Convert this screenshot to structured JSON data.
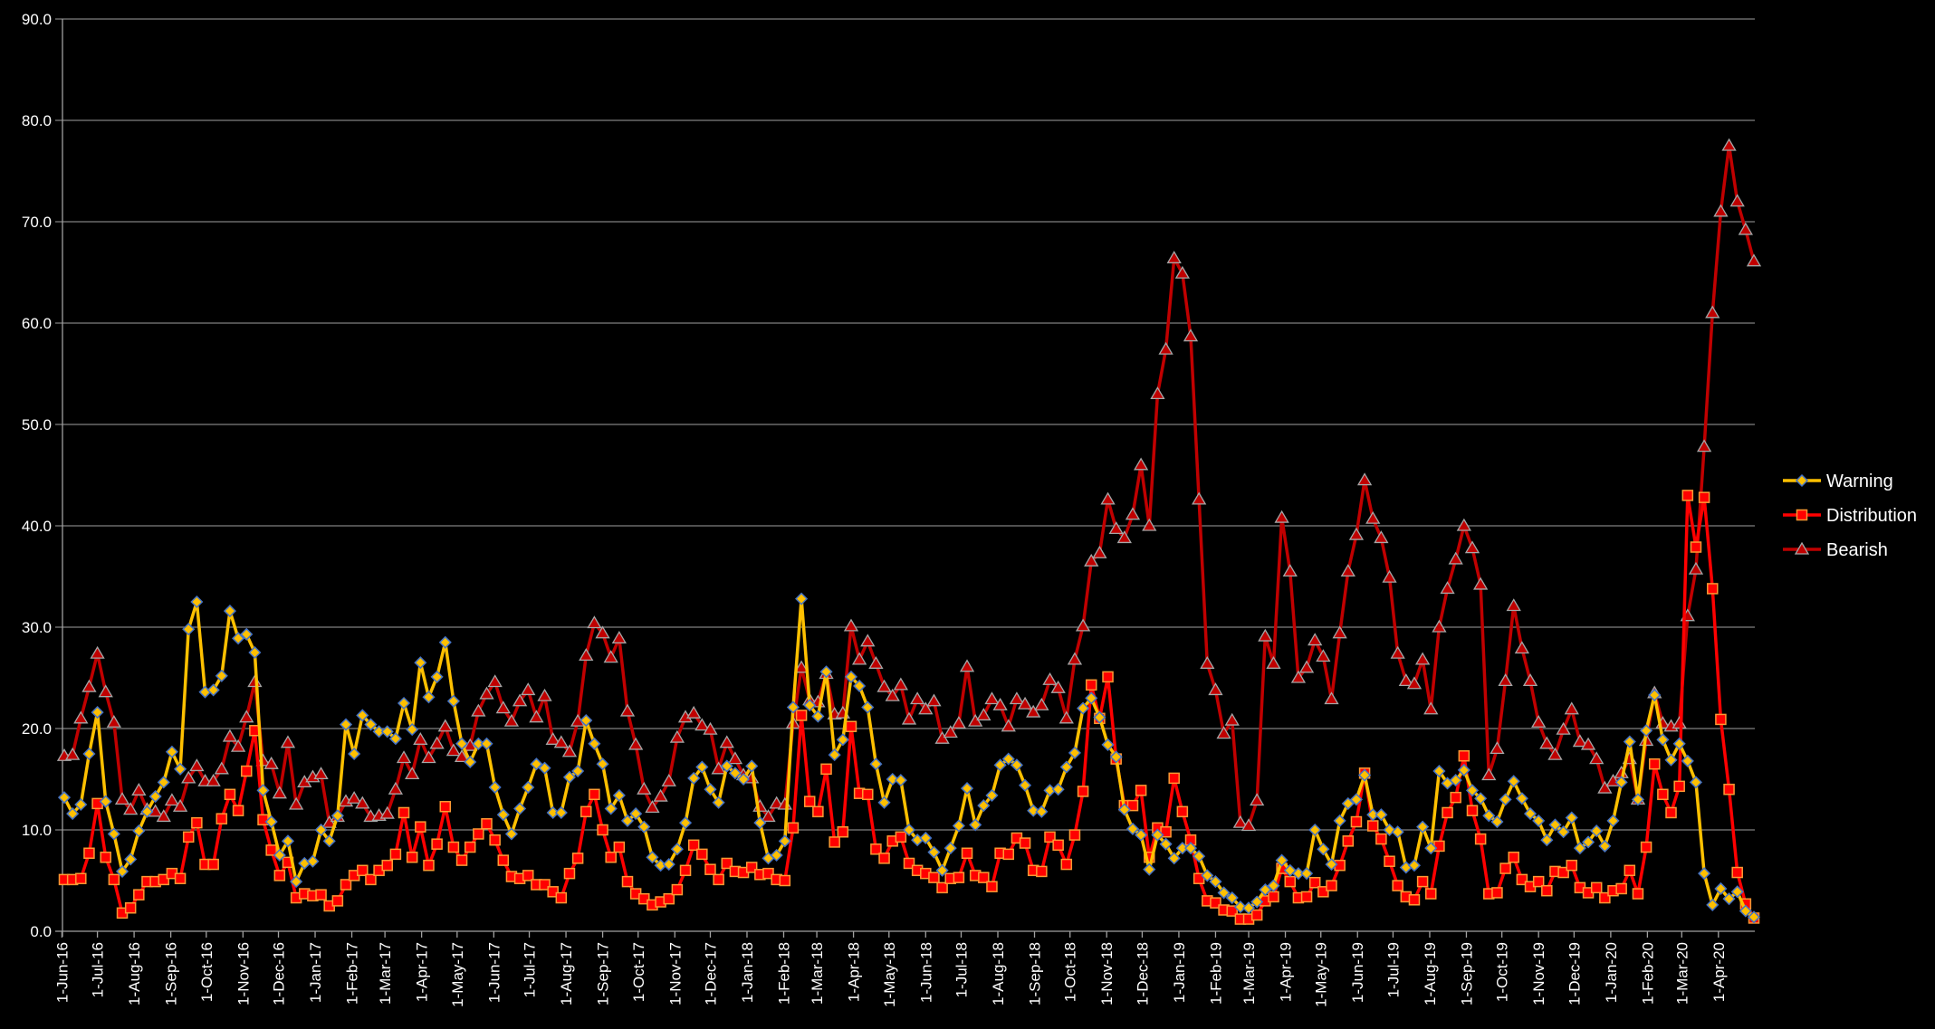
{
  "chart_data": {
    "type": "line",
    "title": "",
    "xlabel": "",
    "ylabel": "",
    "ylim": [
      0,
      90
    ],
    "y_ticks": [
      "0.0",
      "10.0",
      "20.0",
      "30.0",
      "40.0",
      "50.0",
      "60.0",
      "70.0",
      "80.0",
      "90.0"
    ],
    "grid": "horizontal",
    "legend_position": "right",
    "x_start": "2016-06-03",
    "x_step_days": 7,
    "x_tick_labels": [
      "1-Jun-16",
      "1-Jul-16",
      "1-Aug-16",
      "1-Sep-16",
      "1-Oct-16",
      "1-Nov-16",
      "1-Dec-16",
      "1-Jan-17",
      "1-Feb-17",
      "1-Mar-17",
      "1-Apr-17",
      "1-May-17",
      "1-Jun-17",
      "1-Jul-17",
      "1-Aug-17",
      "1-Sep-17",
      "1-Oct-17",
      "1-Nov-17",
      "1-Dec-17",
      "1-Jan-18",
      "1-Feb-18",
      "1-Mar-18",
      "1-Apr-18",
      "1-May-18",
      "1-Jun-18",
      "1-Jul-18",
      "1-Aug-18",
      "1-Sep-18",
      "1-Oct-18",
      "1-Nov-18",
      "1-Dec-18",
      "1-Jan-19",
      "1-Feb-19",
      "1-Mar-19",
      "1-Apr-19",
      "1-May-19",
      "1-Jun-19",
      "1-Jul-19",
      "1-Aug-19",
      "1-Sep-19",
      "1-Oct-19",
      "1-Nov-19",
      "1-Dec-19",
      "1-Jan-20",
      "1-Feb-20",
      "1-Mar-20",
      "1-Apr-20"
    ],
    "series": [
      {
        "name": "Warning",
        "marker": "diamond",
        "color": "#FFC000",
        "edge": "#4472C4",
        "values": [
          13.2,
          11.6,
          12.5,
          17.5,
          21.6,
          12.8,
          9.6,
          5.9,
          7.1,
          9.9,
          11.8,
          13.3,
          14.7,
          17.7,
          16.0,
          29.8,
          32.5,
          23.6,
          23.8,
          25.2,
          31.6,
          28.9,
          29.3,
          27.5,
          13.9,
          10.8,
          7.5,
          8.9,
          4.9,
          6.7,
          6.9,
          10.0,
          8.9,
          11.4,
          20.4,
          17.5,
          21.3,
          20.4,
          19.7,
          19.7,
          19.0,
          22.5,
          19.9,
          26.5,
          23.1,
          25.1,
          28.5,
          22.7,
          18.5,
          16.7,
          18.5,
          18.5,
          14.2,
          11.5,
          9.6,
          12.1,
          14.2,
          16.5,
          16.1,
          11.7,
          11.7,
          15.2,
          15.8,
          20.8,
          18.5,
          16.5,
          12.1,
          13.4,
          10.9,
          11.6,
          10.3,
          7.3,
          6.5,
          6.6,
          8.1,
          10.7,
          15.1,
          16.2,
          14.0,
          12.7,
          16.3,
          15.6,
          15.0,
          16.3,
          10.7,
          7.2,
          7.5,
          8.9,
          22.1,
          32.8,
          22.3,
          21.2,
          25.6,
          17.4,
          18.9,
          25.1,
          24.2,
          22.1,
          16.5,
          12.7,
          15.0,
          14.9,
          10.0,
          9.0,
          9.2,
          7.8,
          6.0,
          8.2,
          10.4,
          14.1,
          10.5,
          12.4,
          13.4,
          16.4,
          17.0,
          16.4,
          14.4,
          11.9,
          11.8,
          13.9,
          14.0,
          16.2,
          17.6,
          22.0,
          23.0,
          21.1,
          18.4,
          17.2,
          12.0,
          10.1,
          9.5,
          6.1,
          9.5,
          8.6,
          7.2,
          8.2,
          8.2,
          7.4,
          5.5,
          4.9,
          3.8,
          3.3,
          2.4,
          2.3,
          2.9,
          4.1,
          4.5,
          7.0,
          6.0,
          5.7,
          5.7,
          10.0,
          8.1,
          6.6,
          10.9,
          12.6,
          13.0,
          15.4,
          11.5,
          11.5,
          10.0,
          9.8,
          6.3,
          6.5,
          10.3,
          8.2,
          15.8,
          14.6,
          14.9,
          15.9,
          13.9,
          13.1,
          11.4,
          10.8,
          13.0,
          14.8,
          13.1,
          11.6,
          10.9,
          9.0,
          10.5,
          9.8,
          11.2,
          8.2,
          8.8,
          9.9,
          8.4,
          10.9,
          14.7,
          18.7,
          13.0,
          19.8,
          23.3,
          18.9,
          16.9,
          18.5,
          16.8,
          14.7,
          5.7,
          2.6,
          4.2,
          3.2,
          3.9,
          2.0,
          1.4
        ]
      },
      {
        "name": "Distribution",
        "marker": "square",
        "color": "#FF0000",
        "edge": "#FF9933",
        "values": [
          5.1,
          5.1,
          5.2,
          7.7,
          12.6,
          7.3,
          5.1,
          1.8,
          2.3,
          3.6,
          4.9,
          4.9,
          5.1,
          5.7,
          5.2,
          9.3,
          10.7,
          6.6,
          6.6,
          11.1,
          13.5,
          11.9,
          15.8,
          19.8,
          11.0,
          8.0,
          5.5,
          6.8,
          3.3,
          3.7,
          3.5,
          3.6,
          2.5,
          3.0,
          4.6,
          5.5,
          6.0,
          5.1,
          6.0,
          6.5,
          7.6,
          11.7,
          7.3,
          10.3,
          6.5,
          8.6,
          12.3,
          8.3,
          7.0,
          8.3,
          9.6,
          10.6,
          9.0,
          7.0,
          5.4,
          5.2,
          5.5,
          4.6,
          4.6,
          3.9,
          3.3,
          5.7,
          7.2,
          11.8,
          13.5,
          10.0,
          7.3,
          8.3,
          4.9,
          3.7,
          3.2,
          2.6,
          2.9,
          3.2,
          4.1,
          6.0,
          8.5,
          7.6,
          6.1,
          5.1,
          6.7,
          5.9,
          5.8,
          6.3,
          5.6,
          5.7,
          5.1,
          5.0,
          10.2,
          21.3,
          12.8,
          11.8,
          16.0,
          8.8,
          9.8,
          20.2,
          13.6,
          13.5,
          8.1,
          7.2,
          8.9,
          9.3,
          6.7,
          6.0,
          5.7,
          5.3,
          4.3,
          5.2,
          5.3,
          7.7,
          5.5,
          5.3,
          4.4,
          7.7,
          7.6,
          9.2,
          8.7,
          6.0,
          5.9,
          9.3,
          8.5,
          6.6,
          9.5,
          13.8,
          24.3,
          21.0,
          25.1,
          17.0,
          12.4,
          12.4,
          13.9,
          7.3,
          10.2,
          9.8,
          15.1,
          11.8,
          9.0,
          5.2,
          3.0,
          2.8,
          2.1,
          2.0,
          1.2,
          1.2,
          1.6,
          3.0,
          3.4,
          6.2,
          4.9,
          3.3,
          3.4,
          4.8,
          3.9,
          4.5,
          6.5,
          8.9,
          10.8,
          15.6,
          10.4,
          9.1,
          6.9,
          4.5,
          3.4,
          3.1,
          4.9,
          3.7,
          8.4,
          11.7,
          13.2,
          17.3,
          11.9,
          9.1,
          3.7,
          3.8,
          6.2,
          7.3,
          5.1,
          4.4,
          4.9,
          4.0,
          5.9,
          5.8,
          6.5,
          4.3,
          3.8,
          4.3,
          3.3,
          4.0,
          4.2,
          6.0,
          3.7,
          8.3,
          16.5,
          13.5,
          11.7,
          14.3,
          43.0,
          37.9,
          42.8,
          33.8,
          20.9,
          14.0,
          5.8,
          2.7,
          1.3
        ]
      },
      {
        "name": "Bearish",
        "marker": "triangle",
        "color": "#C00000",
        "edge": "#A6A6A6",
        "values": [
          17.3,
          17.4,
          21.0,
          24.1,
          27.4,
          23.6,
          20.6,
          13.0,
          12.0,
          13.9,
          12.0,
          11.8,
          11.3,
          12.9,
          12.3,
          15.1,
          16.3,
          14.8,
          14.8,
          16.0,
          19.2,
          18.2,
          21.1,
          24.6,
          16.8,
          16.5,
          13.6,
          18.6,
          12.5,
          14.7,
          15.2,
          15.5,
          10.7,
          11.3,
          12.8,
          13.1,
          12.6,
          11.3,
          11.4,
          11.6,
          14.0,
          17.1,
          15.5,
          18.9,
          17.1,
          18.5,
          20.2,
          17.8,
          17.2,
          18.3,
          21.7,
          23.4,
          24.6,
          22.0,
          20.7,
          22.7,
          23.8,
          21.1,
          23.2,
          18.9,
          18.6,
          17.7,
          20.7,
          27.2,
          30.4,
          29.4,
          27.0,
          28.9,
          21.7,
          18.4,
          14.0,
          12.2,
          13.3,
          14.8,
          19.1,
          21.1,
          21.5,
          20.3,
          19.9,
          16.0,
          18.6,
          17.0,
          15.4,
          15.1,
          12.3,
          11.3,
          12.6,
          12.5,
          20.5,
          26.0,
          22.8,
          22.6,
          25.4,
          21.4,
          21.5,
          30.1,
          26.8,
          28.6,
          26.4,
          24.1,
          23.2,
          24.3,
          20.9,
          22.9,
          21.9,
          22.7,
          19.0,
          19.6,
          20.5,
          26.1,
          20.7,
          21.3,
          22.9,
          22.3,
          20.2,
          22.9,
          22.4,
          21.6,
          22.3,
          24.8,
          24.0,
          21.0,
          26.8,
          30.1,
          36.5,
          37.3,
          42.6,
          39.7,
          38.8,
          41.1,
          46.0,
          40.0,
          53.0,
          57.4,
          66.4,
          64.9,
          58.7,
          42.6,
          26.4,
          23.8,
          19.5,
          20.8,
          10.7,
          10.4,
          12.9,
          29.1,
          26.4,
          40.8,
          35.5,
          25.0,
          26.0,
          28.7,
          27.1,
          22.9,
          29.4,
          35.5,
          39.1,
          44.5,
          40.7,
          38.8,
          34.9,
          27.4,
          24.7,
          24.4,
          26.8,
          21.9,
          30.0,
          33.8,
          36.7,
          40.0,
          37.8,
          34.2,
          15.4,
          18.0,
          24.7,
          32.1,
          27.9,
          24.7,
          20.6,
          18.5,
          17.4,
          19.9,
          21.9,
          18.7,
          18.4,
          17.0,
          14.1,
          14.8,
          15.6,
          17.0,
          13.0,
          18.8,
          23.5,
          20.5,
          20.2,
          20.5,
          31.1,
          35.7,
          47.8,
          61.0,
          71.0,
          77.5,
          72.0,
          69.2,
          66.1
        ]
      }
    ]
  },
  "colors": {
    "background": "#000000",
    "grid": "#808080",
    "text": "#FFFFFF"
  }
}
